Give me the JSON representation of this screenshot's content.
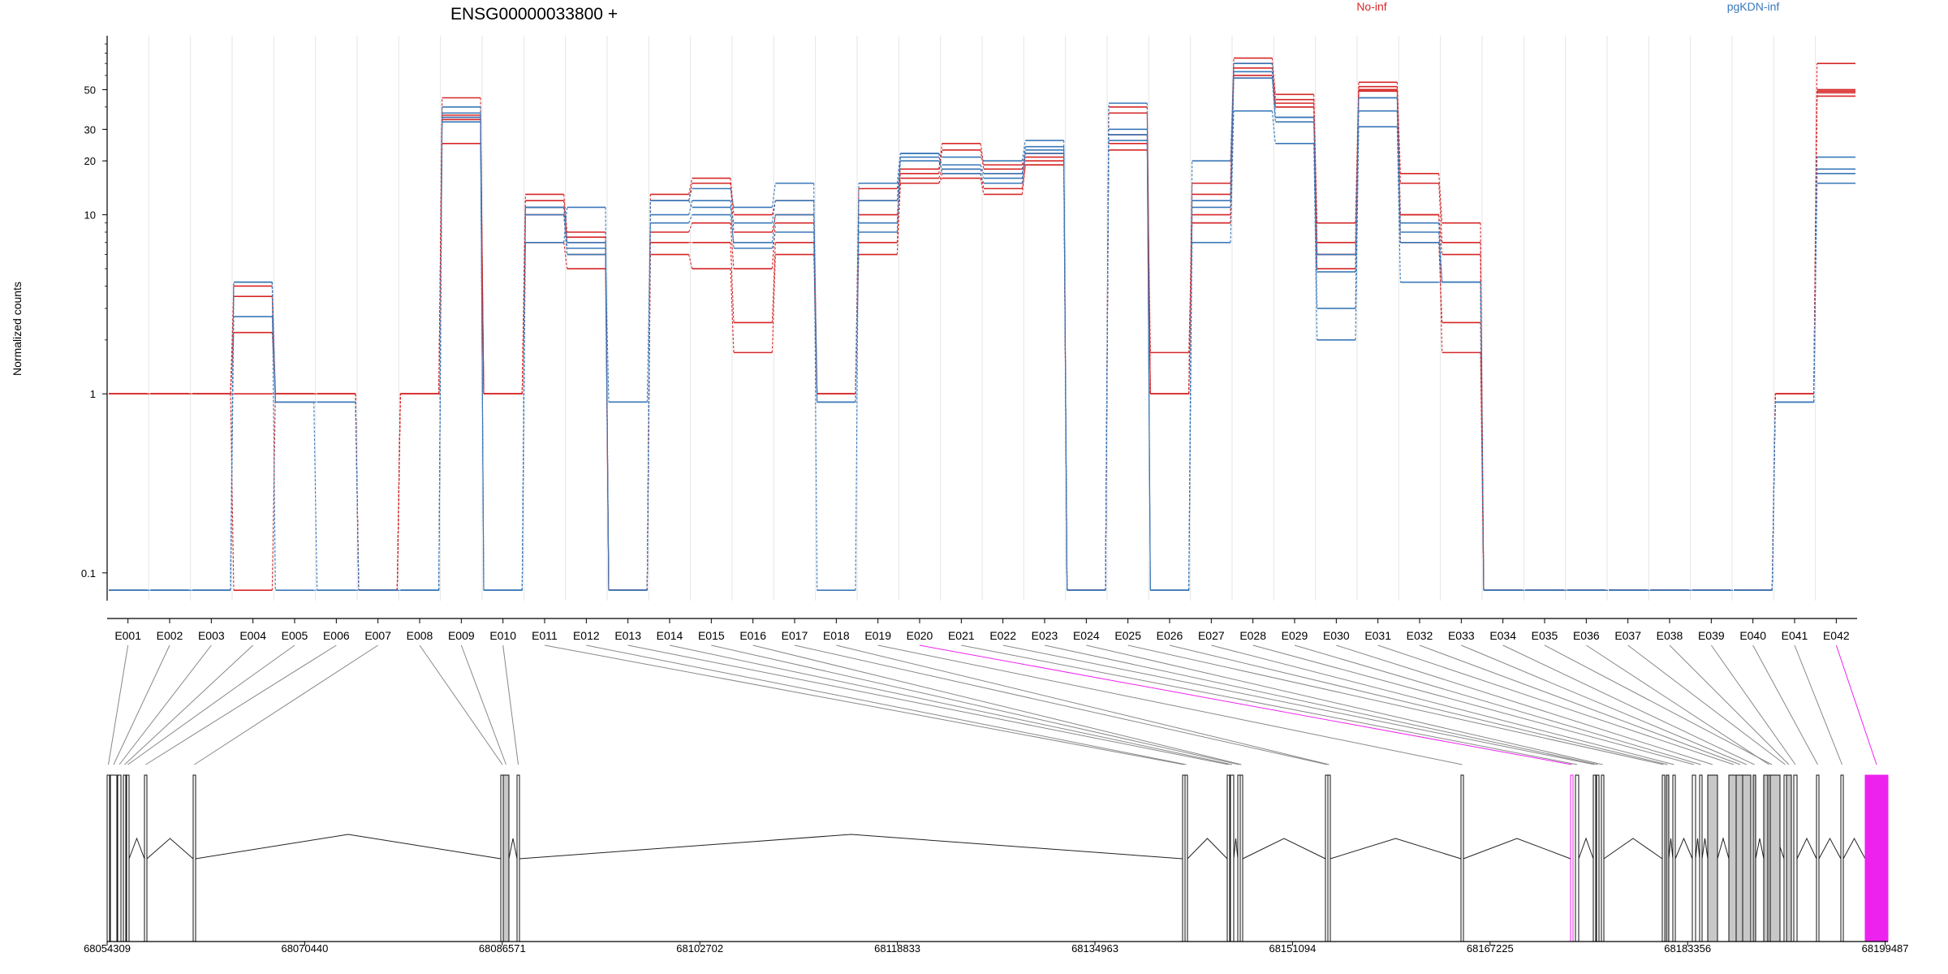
{
  "chart_data": {
    "type": "line",
    "title": "ENSG00000033800 +",
    "ylabel": "Normalized counts",
    "yscale": "log",
    "ylim": [
      0.07,
      100
    ],
    "y_ticks": [
      {
        "value": 0.1,
        "label": "0.1"
      },
      {
        "value": 1,
        "label": "1"
      },
      {
        "value": 10,
        "label": "10"
      },
      {
        "value": 20,
        "label": "20"
      },
      {
        "value": 30,
        "label": "30"
      },
      {
        "value": 50,
        "label": "50"
      }
    ],
    "categories": [
      "E001",
      "E002",
      "E003",
      "E004",
      "E005",
      "E006",
      "E007",
      "E008",
      "E009",
      "E010",
      "E011",
      "E012",
      "E013",
      "E014",
      "E015",
      "E016",
      "E017",
      "E018",
      "E019",
      "E020",
      "E021",
      "E022",
      "E023",
      "E024",
      "E025",
      "E026",
      "E027",
      "E028",
      "E029",
      "E030",
      "E031",
      "E032",
      "E033",
      "E034",
      "E035",
      "E036",
      "E037",
      "E038",
      "E039",
      "E040",
      "E041",
      "E042"
    ],
    "legend": [
      {
        "label": "No-inf",
        "color": "#d62728"
      },
      {
        "label": "pgKDN-inf",
        "color": "#3a78b8"
      }
    ],
    "series": [
      {
        "group": "No-inf",
        "color": "#d62728",
        "values": [
          1,
          1,
          1,
          2.2,
          1,
          1,
          0.08,
          1,
          45,
          1,
          13,
          8,
          0.08,
          13,
          16,
          10,
          12,
          1,
          14,
          18,
          25,
          19,
          22,
          0.08,
          40,
          1,
          15,
          75,
          47,
          9,
          55,
          17,
          9,
          0.08,
          0.08,
          0.08,
          0.08,
          0.08,
          0.08,
          0.08,
          1,
          70
        ]
      },
      {
        "group": "No-inf",
        "color": "#d62728",
        "values": [
          1,
          1,
          1,
          3.5,
          1,
          1,
          0.08,
          1,
          36,
          1,
          12,
          7,
          0.08,
          12,
          15,
          8,
          10,
          1,
          12,
          17,
          23,
          18,
          21,
          0.08,
          37,
          1,
          13,
          70,
          44,
          7,
          52,
          15,
          7,
          0.08,
          0.08,
          0.08,
          0.08,
          0.08,
          0.08,
          0.08,
          1,
          50
        ]
      },
      {
        "group": "No-inf",
        "color": "#d62728",
        "values": [
          1,
          1,
          1,
          1,
          1,
          1,
          0.08,
          1,
          35,
          1,
          10,
          6,
          0.08,
          8,
          9,
          5,
          9,
          1,
          10,
          16,
          18,
          17,
          20,
          0.08,
          28,
          1,
          10,
          66,
          42,
          6,
          50,
          10,
          6,
          0.08,
          0.08,
          0.08,
          0.08,
          0.08,
          0.08,
          0.08,
          1,
          49
        ]
      },
      {
        "group": "No-inf",
        "color": "#d62728",
        "values": [
          1,
          1,
          1,
          0.08,
          1,
          1,
          0.08,
          1,
          25,
          1,
          7,
          5,
          0.08,
          7,
          7,
          2.5,
          7,
          1,
          7,
          15,
          17,
          14,
          19,
          0.08,
          25,
          1,
          9,
          60,
          40,
          5,
          49,
          7,
          2.5,
          0.08,
          0.08,
          0.08,
          0.08,
          0.08,
          0.08,
          0.08,
          1,
          46
        ]
      },
      {
        "group": "No-inf",
        "color": "#d62728",
        "values": [
          1,
          1,
          1,
          4,
          1,
          1,
          0.08,
          1,
          34,
          1,
          11,
          7.5,
          0.08,
          6,
          5,
          1.7,
          6,
          1,
          6,
          15,
          16,
          13,
          19,
          0.08,
          23,
          1.7,
          9,
          58,
          40,
          6,
          50,
          10,
          1.7,
          0.08,
          0.08,
          0.08,
          0.08,
          0.08,
          0.08,
          0.08,
          1,
          48
        ]
      },
      {
        "group": "pgKDN-inf",
        "color": "#3a78b8",
        "values": [
          0.08,
          0.08,
          0.08,
          4.2,
          0.08,
          0.08,
          0.08,
          0.08,
          40,
          0.08,
          7,
          11,
          0.08,
          12,
          14,
          11,
          15,
          0.08,
          15,
          22,
          21,
          20,
          26,
          0.08,
          42,
          0.08,
          20,
          70,
          35,
          3,
          45,
          9,
          4.2,
          0.08,
          0.08,
          0.08,
          0.08,
          0.08,
          0.08,
          0.08,
          0.9,
          21
        ]
      },
      {
        "group": "pgKDN-inf",
        "color": "#3a78b8",
        "values": [
          0.08,
          0.08,
          0.08,
          4.2,
          0.9,
          0.9,
          0.08,
          0.08,
          37,
          0.08,
          11,
          7,
          0.08,
          12,
          11,
          9,
          12,
          0.9,
          12,
          21,
          19,
          17,
          24,
          0.08,
          30,
          0.08,
          12,
          63,
          35,
          6,
          45,
          8,
          4.2,
          0.08,
          0.08,
          0.08,
          0.08,
          0.08,
          0.08,
          0.08,
          0.9,
          18
        ]
      },
      {
        "group": "pgKDN-inf",
        "color": "#3a78b8",
        "values": [
          0.08,
          0.08,
          0.08,
          2.7,
          0.9,
          0.08,
          0.08,
          0.08,
          33,
          0.08,
          10,
          6,
          0.9,
          9,
          10,
          7,
          10,
          0.9,
          9,
          20,
          18,
          16,
          23,
          0.08,
          28,
          0.08,
          11,
          58,
          33,
          4.8,
          38,
          7,
          4.2,
          0.08,
          0.08,
          0.08,
          0.08,
          0.08,
          0.08,
          0.08,
          0.9,
          17
        ]
      },
      {
        "group": "pgKDN-inf",
        "color": "#3a78b8",
        "values": [
          0.08,
          0.08,
          0.08,
          4.2,
          0.9,
          0.9,
          0.08,
          0.08,
          35,
          0.08,
          11,
          6.5,
          0.08,
          10,
          12,
          6.5,
          8,
          0.9,
          8,
          22,
          17,
          15,
          22,
          0.08,
          26,
          0.08,
          7,
          38,
          25,
          2,
          31,
          4.2,
          4.2,
          0.08,
          0.08,
          0.08,
          0.08,
          0.08,
          0.08,
          0.08,
          0.9,
          15
        ]
      }
    ],
    "gene_model": {
      "genomic_ticks": [
        "68054309",
        "68070440",
        "68086571",
        "68102702",
        "68118833",
        "68134963",
        "68151094",
        "68167225",
        "68183356",
        "68199487"
      ],
      "highlighted_exons": [
        "E020",
        "E042"
      ],
      "highlight_color": "#ee22ee"
    }
  }
}
